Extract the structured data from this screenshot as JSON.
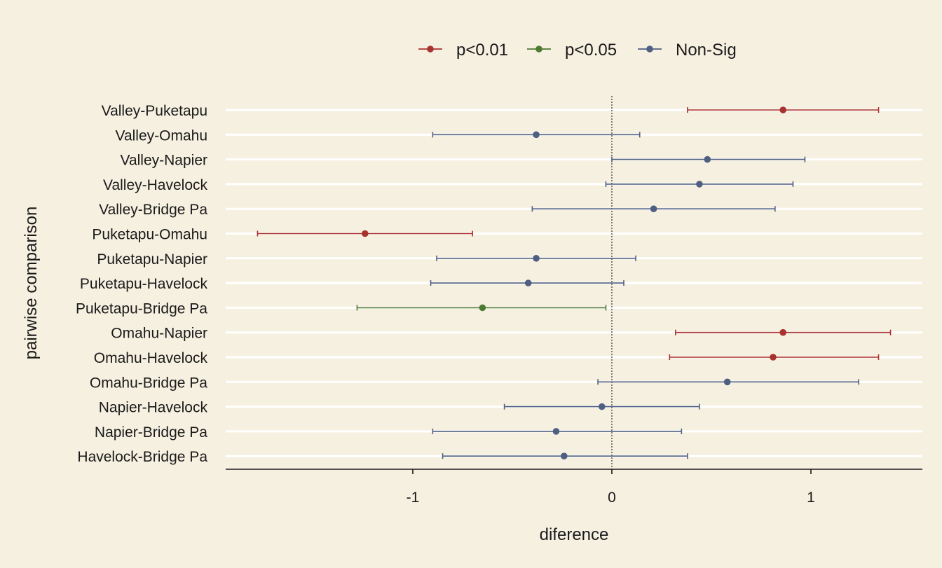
{
  "chart_data": {
    "type": "scatter",
    "subtype": "forest-plot-with-error-bars",
    "title": "",
    "xlabel": "diference",
    "ylabel": "pairwise comparison",
    "xlim": [
      -1.94,
      1.56
    ],
    "xticks": [
      -1,
      0,
      1
    ],
    "xtick_labels": [
      "-1",
      "0",
      "1"
    ],
    "reference_line": {
      "x": 0,
      "style": "dotted"
    },
    "grid": {
      "horizontal": true,
      "vertical": false,
      "color": "#ffffff"
    },
    "legend": {
      "position": "top",
      "entries": [
        {
          "key": "p01",
          "label": "p<0.01",
          "color": "#a8322e"
        },
        {
          "key": "p05",
          "label": "p<0.05",
          "color": "#4d7a33"
        },
        {
          "key": "ns",
          "label": "Non-Sig",
          "color": "#4e5f82"
        }
      ]
    },
    "categories": [
      "Valley-Puketapu",
      "Valley-Omahu",
      "Valley-Napier",
      "Valley-Havelock",
      "Valley-Bridge Pa",
      "Puketapu-Omahu",
      "Puketapu-Napier",
      "Puketapu-Havelock",
      "Puketapu-Bridge Pa",
      "Omahu-Napier",
      "Omahu-Havelock",
      "Omahu-Bridge Pa",
      "Napier-Havelock",
      "Napier-Bridge Pa",
      "Havelock-Bridge Pa"
    ],
    "points": [
      {
        "label": "Valley-Puketapu",
        "estimate": 0.86,
        "lower": 0.38,
        "upper": 1.34,
        "group": "p01"
      },
      {
        "label": "Valley-Omahu",
        "estimate": -0.38,
        "lower": -0.9,
        "upper": 0.14,
        "group": "ns"
      },
      {
        "label": "Valley-Napier",
        "estimate": 0.48,
        "lower": 0.0,
        "upper": 0.97,
        "group": "ns"
      },
      {
        "label": "Valley-Havelock",
        "estimate": 0.44,
        "lower": -0.03,
        "upper": 0.91,
        "group": "ns"
      },
      {
        "label": "Valley-Bridge Pa",
        "estimate": 0.21,
        "lower": -0.4,
        "upper": 0.82,
        "group": "ns"
      },
      {
        "label": "Puketapu-Omahu",
        "estimate": -1.24,
        "lower": -1.78,
        "upper": -0.7,
        "group": "p01"
      },
      {
        "label": "Puketapu-Napier",
        "estimate": -0.38,
        "lower": -0.88,
        "upper": 0.12,
        "group": "ns"
      },
      {
        "label": "Puketapu-Havelock",
        "estimate": -0.42,
        "lower": -0.91,
        "upper": 0.06,
        "group": "ns"
      },
      {
        "label": "Puketapu-Bridge Pa",
        "estimate": -0.65,
        "lower": -1.28,
        "upper": -0.03,
        "group": "p05"
      },
      {
        "label": "Omahu-Napier",
        "estimate": 0.86,
        "lower": 0.32,
        "upper": 1.4,
        "group": "p01"
      },
      {
        "label": "Omahu-Havelock",
        "estimate": 0.81,
        "lower": 0.29,
        "upper": 1.34,
        "group": "p01"
      },
      {
        "label": "Omahu-Bridge Pa",
        "estimate": 0.58,
        "lower": -0.07,
        "upper": 1.24,
        "group": "ns"
      },
      {
        "label": "Napier-Havelock",
        "estimate": -0.05,
        "lower": -0.54,
        "upper": 0.44,
        "group": "ns"
      },
      {
        "label": "Napier-Bridge Pa",
        "estimate": -0.28,
        "lower": -0.9,
        "upper": 0.35,
        "group": "ns"
      },
      {
        "label": "Havelock-Bridge Pa",
        "estimate": -0.24,
        "lower": -0.85,
        "upper": 0.38,
        "group": "ns"
      }
    ]
  }
}
